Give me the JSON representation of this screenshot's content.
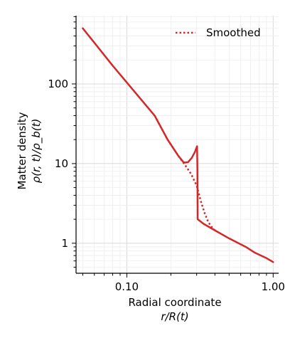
{
  "chart_data": {
    "type": "line",
    "xscale": "log",
    "yscale": "log",
    "xlim": [
      0.045,
      1.09
    ],
    "ylim": [
      0.42,
      720
    ],
    "grid": true,
    "legend_position": "top-right",
    "xlabel_line1": "Radial coordinate",
    "xlabel_line2": "r/R(t)",
    "ylabel_line1": "Matter density",
    "ylabel_line2": "ρ(r, t)/ρ_b(t)",
    "xticks": [
      {
        "value": 0.1,
        "label": "0.10"
      },
      {
        "value": 1.0,
        "label": "1.00"
      }
    ],
    "yticks": [
      {
        "value": 1,
        "label": "1"
      },
      {
        "value": 10,
        "label": "10"
      },
      {
        "value": 100,
        "label": "100"
      }
    ],
    "series": [
      {
        "style": "solid",
        "color": "#d62728",
        "x": [
          0.05,
          0.08,
          0.12,
          0.155,
          0.19,
          0.225,
          0.245,
          0.262,
          0.278,
          0.292,
          0.302,
          0.3035,
          0.305,
          0.335,
          0.4,
          0.5,
          0.65,
          0.75,
          0.9,
          1.0
        ],
        "y": [
          500,
          170,
          70,
          40,
          20,
          12.5,
          10.3,
          10.4,
          11.8,
          14.0,
          16.5,
          9.0,
          2.0,
          1.75,
          1.45,
          1.15,
          0.9,
          0.76,
          0.65,
          0.58
        ]
      },
      {
        "name": "Smoothed",
        "style": "dotted",
        "color": "#d62728",
        "x": [
          0.155,
          0.19,
          0.225,
          0.25,
          0.275,
          0.3,
          0.32,
          0.34,
          0.36,
          0.38,
          0.4
        ],
        "y": [
          40,
          20,
          12.5,
          9.6,
          7.4,
          5.3,
          3.4,
          2.4,
          1.85,
          1.6,
          1.45
        ]
      }
    ]
  }
}
